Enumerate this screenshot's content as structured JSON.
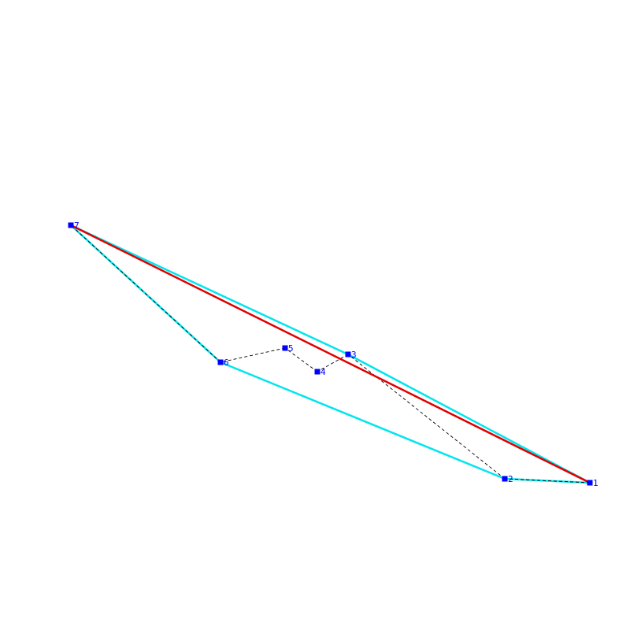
{
  "colors": {
    "background": "#ffffff",
    "hull": "#00e5ee",
    "diagonal": "#e00000",
    "path": "#000000",
    "point": "#0000ff",
    "label": "#0000ff"
  },
  "points": [
    {
      "id": 1,
      "label": "1"
    },
    {
      "id": 2,
      "label": "2"
    },
    {
      "id": 3,
      "label": "3"
    },
    {
      "id": 4,
      "label": "4"
    },
    {
      "id": 5,
      "label": "5"
    },
    {
      "id": 6,
      "label": "6"
    },
    {
      "id": 7,
      "label": "7"
    }
  ],
  "hull_order": [
    1,
    3,
    7,
    6,
    2,
    1
  ],
  "path_order": [
    1,
    2,
    3,
    4,
    5,
    6,
    7
  ],
  "diagonal": [
    7,
    1
  ]
}
